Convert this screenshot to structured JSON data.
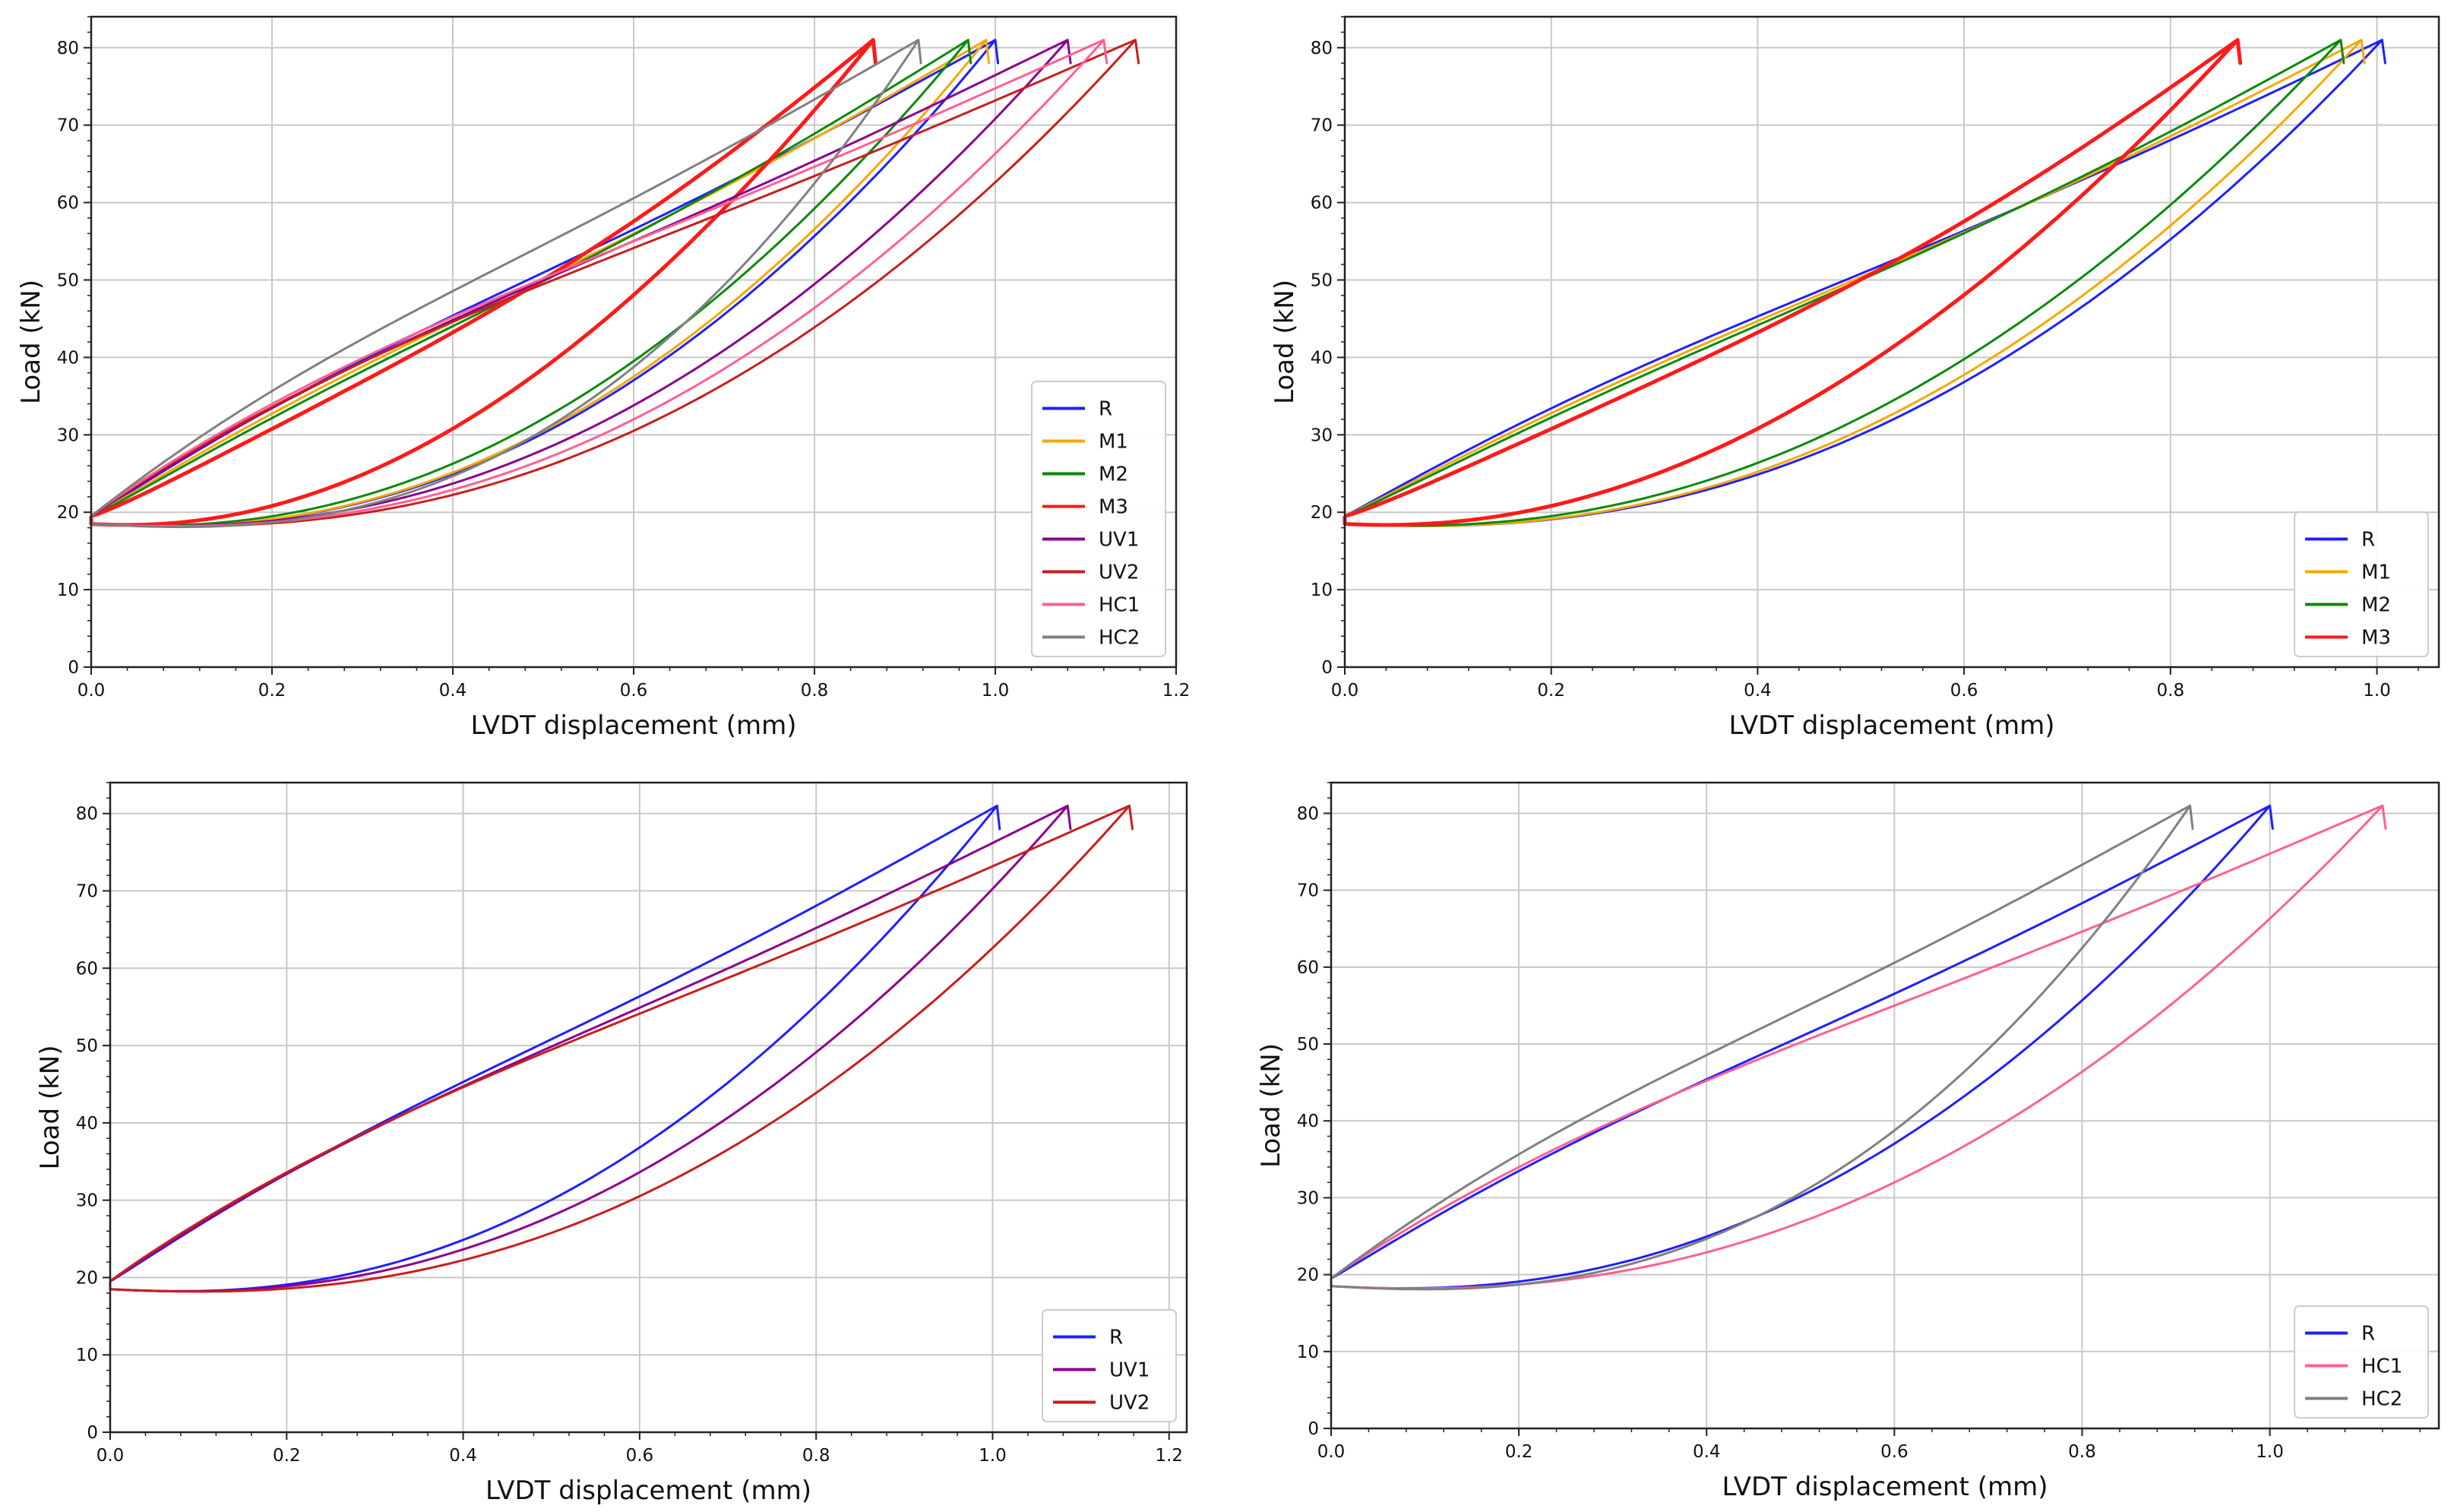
{
  "chart_data": [
    {
      "type": "line",
      "panel": "top-left",
      "xlabel": "LVDT displacement (mm)",
      "ylabel": "Load (kN)",
      "xlim": [
        0,
        1.2
      ],
      "ylim": [
        0,
        84
      ],
      "xticks": [
        "0.0",
        "0.2",
        "0.4",
        "0.6",
        "0.8",
        "1.0",
        "1.2"
      ],
      "yticks": [
        "0",
        "10",
        "20",
        "30",
        "40",
        "50",
        "60",
        "70",
        "80"
      ],
      "grid": true,
      "legend_position": "lower-right",
      "series": [
        {
          "name": "R",
          "color": "#1f1fff",
          "peak_x": 1.0,
          "load_curve": 1.05,
          "unload_curve": 2.3
        },
        {
          "name": "M1",
          "color": "#f5a800",
          "peak_x": 0.99,
          "load_curve": 1.1,
          "unload_curve": 2.3
        },
        {
          "name": "M2",
          "color": "#0a8a0a",
          "peak_x": 0.97,
          "load_curve": 1.15,
          "unload_curve": 2.2
        },
        {
          "name": "M3",
          "color": "#ff1a1a",
          "peak_x": 0.865,
          "load_curve": 1.35,
          "unload_curve": 2.0
        },
        {
          "name": "UV1",
          "color": "#8b008b",
          "peak_x": 1.08,
          "load_curve": 1.0,
          "unload_curve": 2.3
        },
        {
          "name": "UV2",
          "color": "#c81e1e",
          "peak_x": 1.155,
          "load_curve": 0.95,
          "unload_curve": 2.4
        },
        {
          "name": "HC1",
          "color": "#ff5f93",
          "peak_x": 1.12,
          "load_curve": 0.95,
          "unload_curve": 2.35
        },
        {
          "name": "HC2",
          "color": "#808080",
          "peak_x": 0.915,
          "load_curve": 1.0,
          "unload_curve": 2.6
        }
      ]
    },
    {
      "type": "line",
      "panel": "top-right",
      "xlabel": "LVDT displacement (mm)",
      "ylabel": "Load (kN)",
      "xlim": [
        0,
        1.06
      ],
      "ylim": [
        0,
        84
      ],
      "xticks": [
        "0.0",
        "0.2",
        "0.4",
        "0.6",
        "0.8",
        "1.0"
      ],
      "yticks": [
        "0",
        "10",
        "20",
        "30",
        "40",
        "50",
        "60",
        "70",
        "80"
      ],
      "grid": true,
      "legend_position": "lower-right",
      "series": [
        {
          "name": "R",
          "color": "#1f1fff",
          "peak_x": 1.005,
          "load_curve": 1.05,
          "unload_curve": 2.3
        },
        {
          "name": "M1",
          "color": "#f5a800",
          "peak_x": 0.985,
          "load_curve": 1.1,
          "unload_curve": 2.3
        },
        {
          "name": "M2",
          "color": "#0a8a0a",
          "peak_x": 0.965,
          "load_curve": 1.15,
          "unload_curve": 2.2
        },
        {
          "name": "M3",
          "color": "#ff1a1a",
          "peak_x": 0.865,
          "load_curve": 1.35,
          "unload_curve": 2.0
        }
      ]
    },
    {
      "type": "line",
      "panel": "bottom-left",
      "xlabel": "LVDT displacement (mm)",
      "ylabel": "Load (kN)",
      "xlim": [
        0,
        1.22
      ],
      "ylim": [
        0,
        84
      ],
      "xticks": [
        "0.0",
        "0.2",
        "0.4",
        "0.6",
        "0.8",
        "1.0",
        "1.2"
      ],
      "yticks": [
        "0",
        "10",
        "20",
        "30",
        "40",
        "50",
        "60",
        "70",
        "80"
      ],
      "grid": true,
      "legend_position": "lower-right",
      "series": [
        {
          "name": "R",
          "color": "#1f1fff",
          "peak_x": 1.005,
          "load_curve": 1.05,
          "unload_curve": 2.3
        },
        {
          "name": "UV1",
          "color": "#8b008b",
          "peak_x": 1.085,
          "load_curve": 1.0,
          "unload_curve": 2.3
        },
        {
          "name": "UV2",
          "color": "#c81e1e",
          "peak_x": 1.155,
          "load_curve": 0.95,
          "unload_curve": 2.4
        }
      ]
    },
    {
      "type": "line",
      "panel": "bottom-right",
      "xlabel": "LVDT displacement (mm)",
      "ylabel": "Load (kN)",
      "xlim": [
        0,
        1.18
      ],
      "ylim": [
        0,
        84
      ],
      "xticks": [
        "0.0",
        "0.2",
        "0.4",
        "0.6",
        "0.8",
        "1.0"
      ],
      "yticks": [
        "0",
        "10",
        "20",
        "30",
        "40",
        "50",
        "60",
        "70",
        "80"
      ],
      "grid": true,
      "legend_position": "lower-right",
      "series": [
        {
          "name": "R",
          "color": "#1f1fff",
          "peak_x": 1.0,
          "load_curve": 1.05,
          "unload_curve": 2.3
        },
        {
          "name": "HC1",
          "color": "#ff5f93",
          "peak_x": 1.12,
          "load_curve": 0.95,
          "unload_curve": 2.35
        },
        {
          "name": "HC2",
          "color": "#808080",
          "peak_x": 0.915,
          "load_curve": 1.0,
          "unload_curve": 2.6
        }
      ]
    }
  ],
  "loop": {
    "min_load": 18.5,
    "start_load": 19.5,
    "peak_load": 81
  }
}
